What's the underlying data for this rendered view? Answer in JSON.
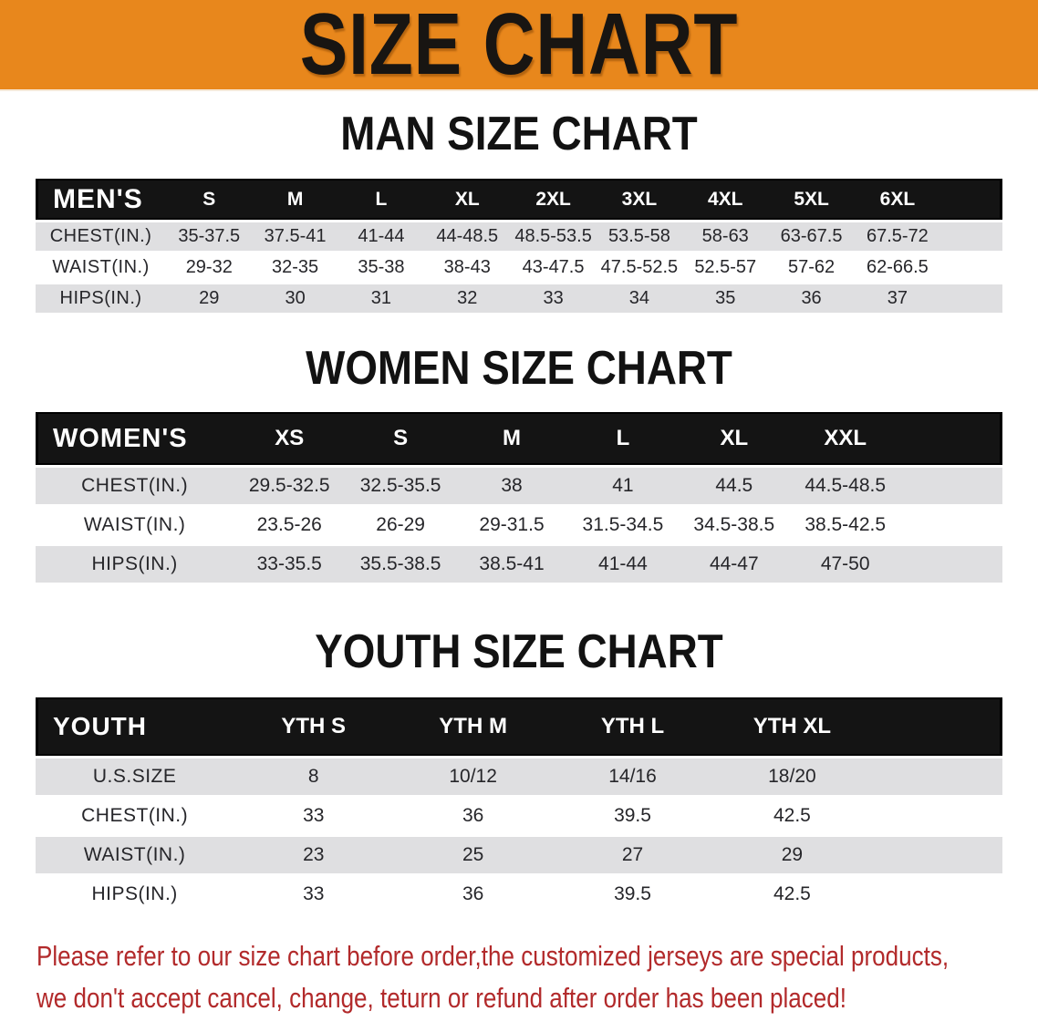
{
  "banner": {
    "title": "SIZE CHART",
    "bg_color": "#E8871C",
    "text_color": "#181512"
  },
  "sections": [
    {
      "key": "men",
      "title": "MAN SIZE CHART",
      "group_label": "MEN'S",
      "columns": [
        "S",
        "M",
        "L",
        "XL",
        "2XL",
        "3XL",
        "4XL",
        "5XL",
        "6XL"
      ],
      "rows": [
        {
          "label": "CHEST(IN.)",
          "values": [
            "35-37.5",
            "37.5-41",
            "41-44",
            "44-48.5",
            "48.5-53.5",
            "53.5-58",
            "58-63",
            "63-67.5",
            "67.5-72"
          ]
        },
        {
          "label": "WAIST(IN.)",
          "values": [
            "29-32",
            "32-35",
            "35-38",
            "38-43",
            "43-47.5",
            "47.5-52.5",
            "52.5-57",
            "57-62",
            "62-66.5"
          ]
        },
        {
          "label": "HIPS(IN.)",
          "values": [
            "29",
            "30",
            "31",
            "32",
            "33",
            "34",
            "35",
            "36",
            "37"
          ]
        }
      ]
    },
    {
      "key": "women",
      "title": "WOMEN SIZE CHART",
      "group_label": "WOMEN'S",
      "columns": [
        "XS",
        "S",
        "M",
        "L",
        "XL",
        "XXL"
      ],
      "rows": [
        {
          "label": "CHEST(IN.)",
          "values": [
            "29.5-32.5",
            "32.5-35.5",
            "38",
            "41",
            "44.5",
            "44.5-48.5"
          ]
        },
        {
          "label": "WAIST(IN.)",
          "values": [
            "23.5-26",
            "26-29",
            "29-31.5",
            "31.5-34.5",
            "34.5-38.5",
            "38.5-42.5"
          ]
        },
        {
          "label": "HIPS(IN.)",
          "values": [
            "33-35.5",
            "35.5-38.5",
            "38.5-41",
            "41-44",
            "44-47",
            "47-50"
          ]
        }
      ]
    },
    {
      "key": "youth",
      "title": "YOUTH SIZE CHART",
      "group_label": "YOUTH",
      "columns": [
        "YTH S",
        "YTH M",
        "YTH L",
        "YTH XL"
      ],
      "rows": [
        {
          "label": "U.S.SIZE",
          "values": [
            "8",
            "10/12",
            "14/16",
            "18/20"
          ]
        },
        {
          "label": "CHEST(IN.)",
          "values": [
            "33",
            "36",
            "39.5",
            "42.5"
          ]
        },
        {
          "label": "WAIST(IN.)",
          "values": [
            "23",
            "25",
            "27",
            "29"
          ]
        },
        {
          "label": "HIPS(IN.)",
          "values": [
            "33",
            "36",
            "39.5",
            "42.5"
          ]
        }
      ]
    }
  ],
  "disclaimer": {
    "color": "#B22A2B",
    "lines": [
      "Please refer to our size chart before order,the customized jerseys are special products,",
      "we don't accept cancel, change, teturn or refund after order has been placed!"
    ]
  }
}
